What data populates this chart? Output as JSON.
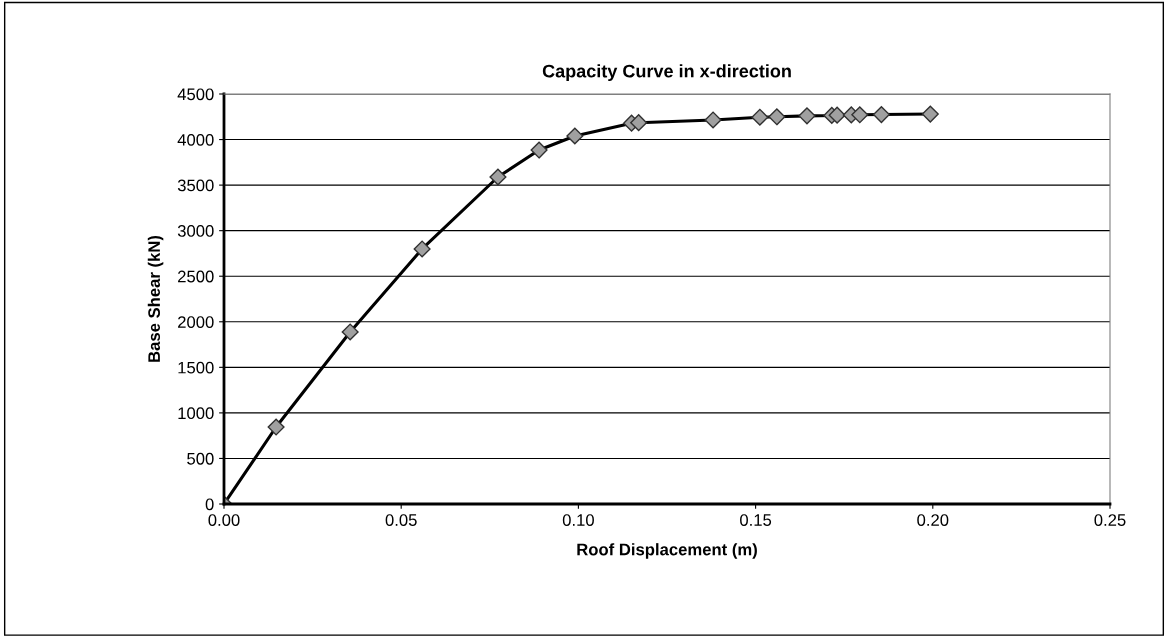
{
  "chart_data": {
    "type": "line",
    "title": "Capacity Curve in x-direction",
    "xlabel": "Roof Displacement (m)",
    "ylabel": "Base Shear (kN)",
    "series": [
      {
        "color": "#000000",
        "x": [
          0,
          0.0147,
          0.0356,
          0.0559,
          0.0773,
          0.0889,
          0.099,
          0.115,
          0.117,
          0.138,
          0.1512,
          0.156,
          0.1645,
          0.1715,
          0.173,
          0.177,
          0.1794,
          0.1855,
          0.1993
        ],
        "values": [
          0,
          845,
          1888,
          2799,
          3589,
          3885,
          4039,
          4180,
          4185,
          4215,
          4245,
          4250,
          4260,
          4265,
          4268,
          4270,
          4272,
          4274,
          4280
        ]
      }
    ],
    "marker": "diamond",
    "line_style": "solid",
    "grid": "y",
    "xlim": [
      0,
      0.25
    ],
    "xticks": [
      {
        "value": 0,
        "label": "0.00"
      },
      0.05,
      {
        "value": 0.1,
        "label": "0.10"
      },
      0.15,
      {
        "value": 0.2,
        "label": "0.20"
      },
      0.25
    ],
    "ylim": [
      0,
      4500
    ],
    "yticks": [
      0,
      500,
      1000,
      1500,
      2000,
      2500,
      3000,
      3500,
      4000,
      4500
    ]
  }
}
